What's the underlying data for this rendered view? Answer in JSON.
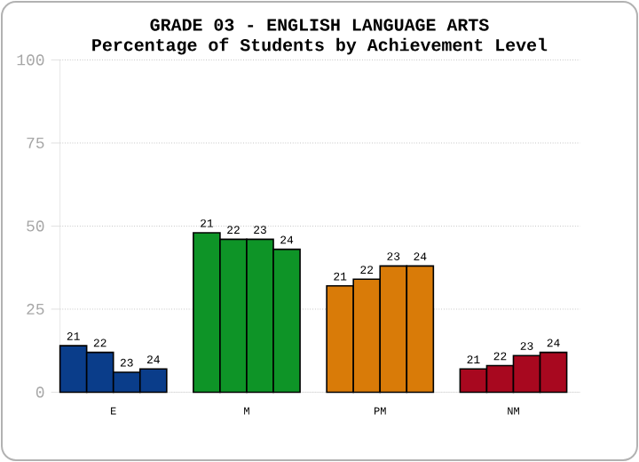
{
  "chart_data": {
    "type": "bar",
    "title": "GRADE 03 - ENGLISH LANGUAGE ARTS",
    "subtitle": "Percentage of Students by Achievement Level",
    "categories": [
      "E",
      "M",
      "PM",
      "NM"
    ],
    "series": [
      {
        "name": "21",
        "colors": [
          "#0a3d8a",
          "#0e9427",
          "#d97b08",
          "#a8081f"
        ],
        "values": [
          14,
          48,
          32,
          7
        ]
      },
      {
        "name": "22",
        "colors": [
          "#0a3d8a",
          "#0e9427",
          "#d97b08",
          "#a8081f"
        ],
        "values": [
          12,
          46,
          34,
          8
        ]
      },
      {
        "name": "23",
        "colors": [
          "#0a3d8a",
          "#0e9427",
          "#d97b08",
          "#a8081f"
        ],
        "values": [
          6,
          46,
          38,
          11
        ]
      },
      {
        "name": "24",
        "colors": [
          "#0a3d8a",
          "#0e9427",
          "#d97b08",
          "#a8081f"
        ],
        "values": [
          7,
          43,
          38,
          12
        ]
      }
    ],
    "ylim": [
      0,
      100
    ],
    "yticks": [
      0,
      25,
      50,
      75,
      100
    ],
    "grid": "y"
  }
}
